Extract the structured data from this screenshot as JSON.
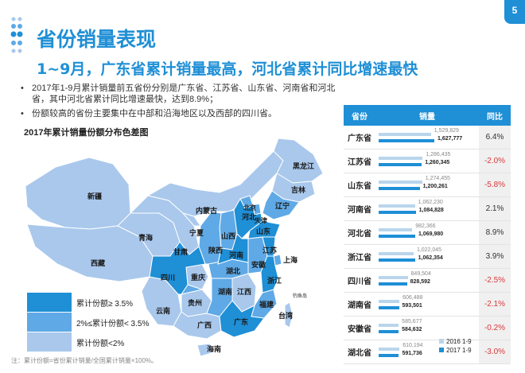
{
  "page_number": "5",
  "title": "省份销量表现",
  "subtitle": "1~9月，广东省累计销量最高，河北省累计同比增速最快",
  "bullets": [
    "2017年1-9月累计销量前五省份分别是广东省、江苏省、山东省、河南省和河北省，其中河北省累计同比增速最快，达到8.9%；",
    "份额较高的省份主要集中在中部和沿海地区以及西部的四川省。"
  ],
  "map": {
    "title": "2017年累计销量份额分布色差图",
    "colors": {
      "high": "#1f8fd6",
      "mid": "#5fa9e6",
      "low": "#a9c8ec"
    },
    "labels": {
      "heilongjiang": "黑龙江",
      "jilin": "吉林",
      "liaoning": "辽宁",
      "neimenggu": "内蒙古",
      "xinjiang": "新疆",
      "qinghai": "青海",
      "xizang": "西藏",
      "gansu": "甘肃",
      "ningxia": "宁夏",
      "shaanxi": "陕西",
      "shanxi": "山西",
      "hebei": "河北",
      "beijing": "北京",
      "tianjin": "天津",
      "shandong": "山东",
      "henan": "河南",
      "jiangsu": "江苏",
      "anhui": "安徽",
      "shanghai": "上海",
      "hubei": "湖北",
      "zhejiang": "浙江",
      "sichuan": "四川",
      "chongqing": "重庆",
      "hunan": "湖南",
      "jiangxi": "江西",
      "fujian": "福建",
      "guizhou": "贵州",
      "yunnan": "云南",
      "guangxi": "广西",
      "guangdong": "广东",
      "taiwan": "台湾",
      "hainan": "海南",
      "diaoyudao": "钓鱼岛"
    }
  },
  "legend": [
    {
      "label": "累计份额≥ 3.5%",
      "color": "#1f8fd6"
    },
    {
      "label": "2%≤累计份额< 3.5%",
      "color": "#5fa9e6"
    },
    {
      "label": "累计份额<2%",
      "color": "#a9c8ec"
    }
  ],
  "note": "注：累计份额=省份累计销量/全国累计销量×100%。",
  "table": {
    "headers": {
      "province": "省份",
      "sales": "销量",
      "yoy": "同比"
    },
    "rows": [
      {
        "province": "广东省",
        "sales_2016": 1529829,
        "sales_2017": 1627777,
        "label_2016": "1,529,829",
        "label_2017": "1,627,777",
        "yoy": "6.4%",
        "negative": false
      },
      {
        "province": "江苏省",
        "sales_2016": 1286435,
        "sales_2017": 1260345,
        "label_2016": "1,286,435",
        "label_2017": "1,260,345",
        "yoy": "-2.0%",
        "negative": true
      },
      {
        "province": "山东省",
        "sales_2016": 1274455,
        "sales_2017": 1200261,
        "label_2016": "1,274,455",
        "label_2017": "1,200,261",
        "yoy": "-5.8%",
        "negative": true
      },
      {
        "province": "河南省",
        "sales_2016": 1062230,
        "sales_2017": 1084828,
        "label_2016": "1,062,230",
        "label_2017": "1,084,828",
        "yoy": "2.1%",
        "negative": false
      },
      {
        "province": "河北省",
        "sales_2016": 982366,
        "sales_2017": 1069980,
        "label_2016": "982,366",
        "label_2017": "1,069,980",
        "yoy": "8.9%",
        "negative": false
      },
      {
        "province": "浙江省",
        "sales_2016": 1022045,
        "sales_2017": 1062354,
        "label_2016": "1,022,045",
        "label_2017": "1,062,354",
        "yoy": "3.9%",
        "negative": false
      },
      {
        "province": "四川省",
        "sales_2016": 849504,
        "sales_2017": 828592,
        "label_2016": "849,504",
        "label_2017": "828,592",
        "yoy": "-2.5%",
        "negative": true
      },
      {
        "province": "湖南省",
        "sales_2016": 606488,
        "sales_2017": 593501,
        "label_2016": "606,488",
        "label_2017": "593,501",
        "yoy": "-2.1%",
        "negative": true
      },
      {
        "province": "安徽省",
        "sales_2016": 585677,
        "sales_2017": 584632,
        "label_2016": "585,677",
        "label_2017": "584,632",
        "yoy": "-0.2%",
        "negative": true
      },
      {
        "province": "湖北省",
        "sales_2016": 610194,
        "sales_2017": 591736,
        "label_2016": "610,194",
        "label_2017": "591,736",
        "yoy": "-3.0%",
        "negative": true
      }
    ],
    "legend": [
      {
        "label": "2016 1-9",
        "color": "#b9d5ec"
      },
      {
        "label": "2017 1-9",
        "color": "#1f8fd6"
      }
    ]
  }
}
